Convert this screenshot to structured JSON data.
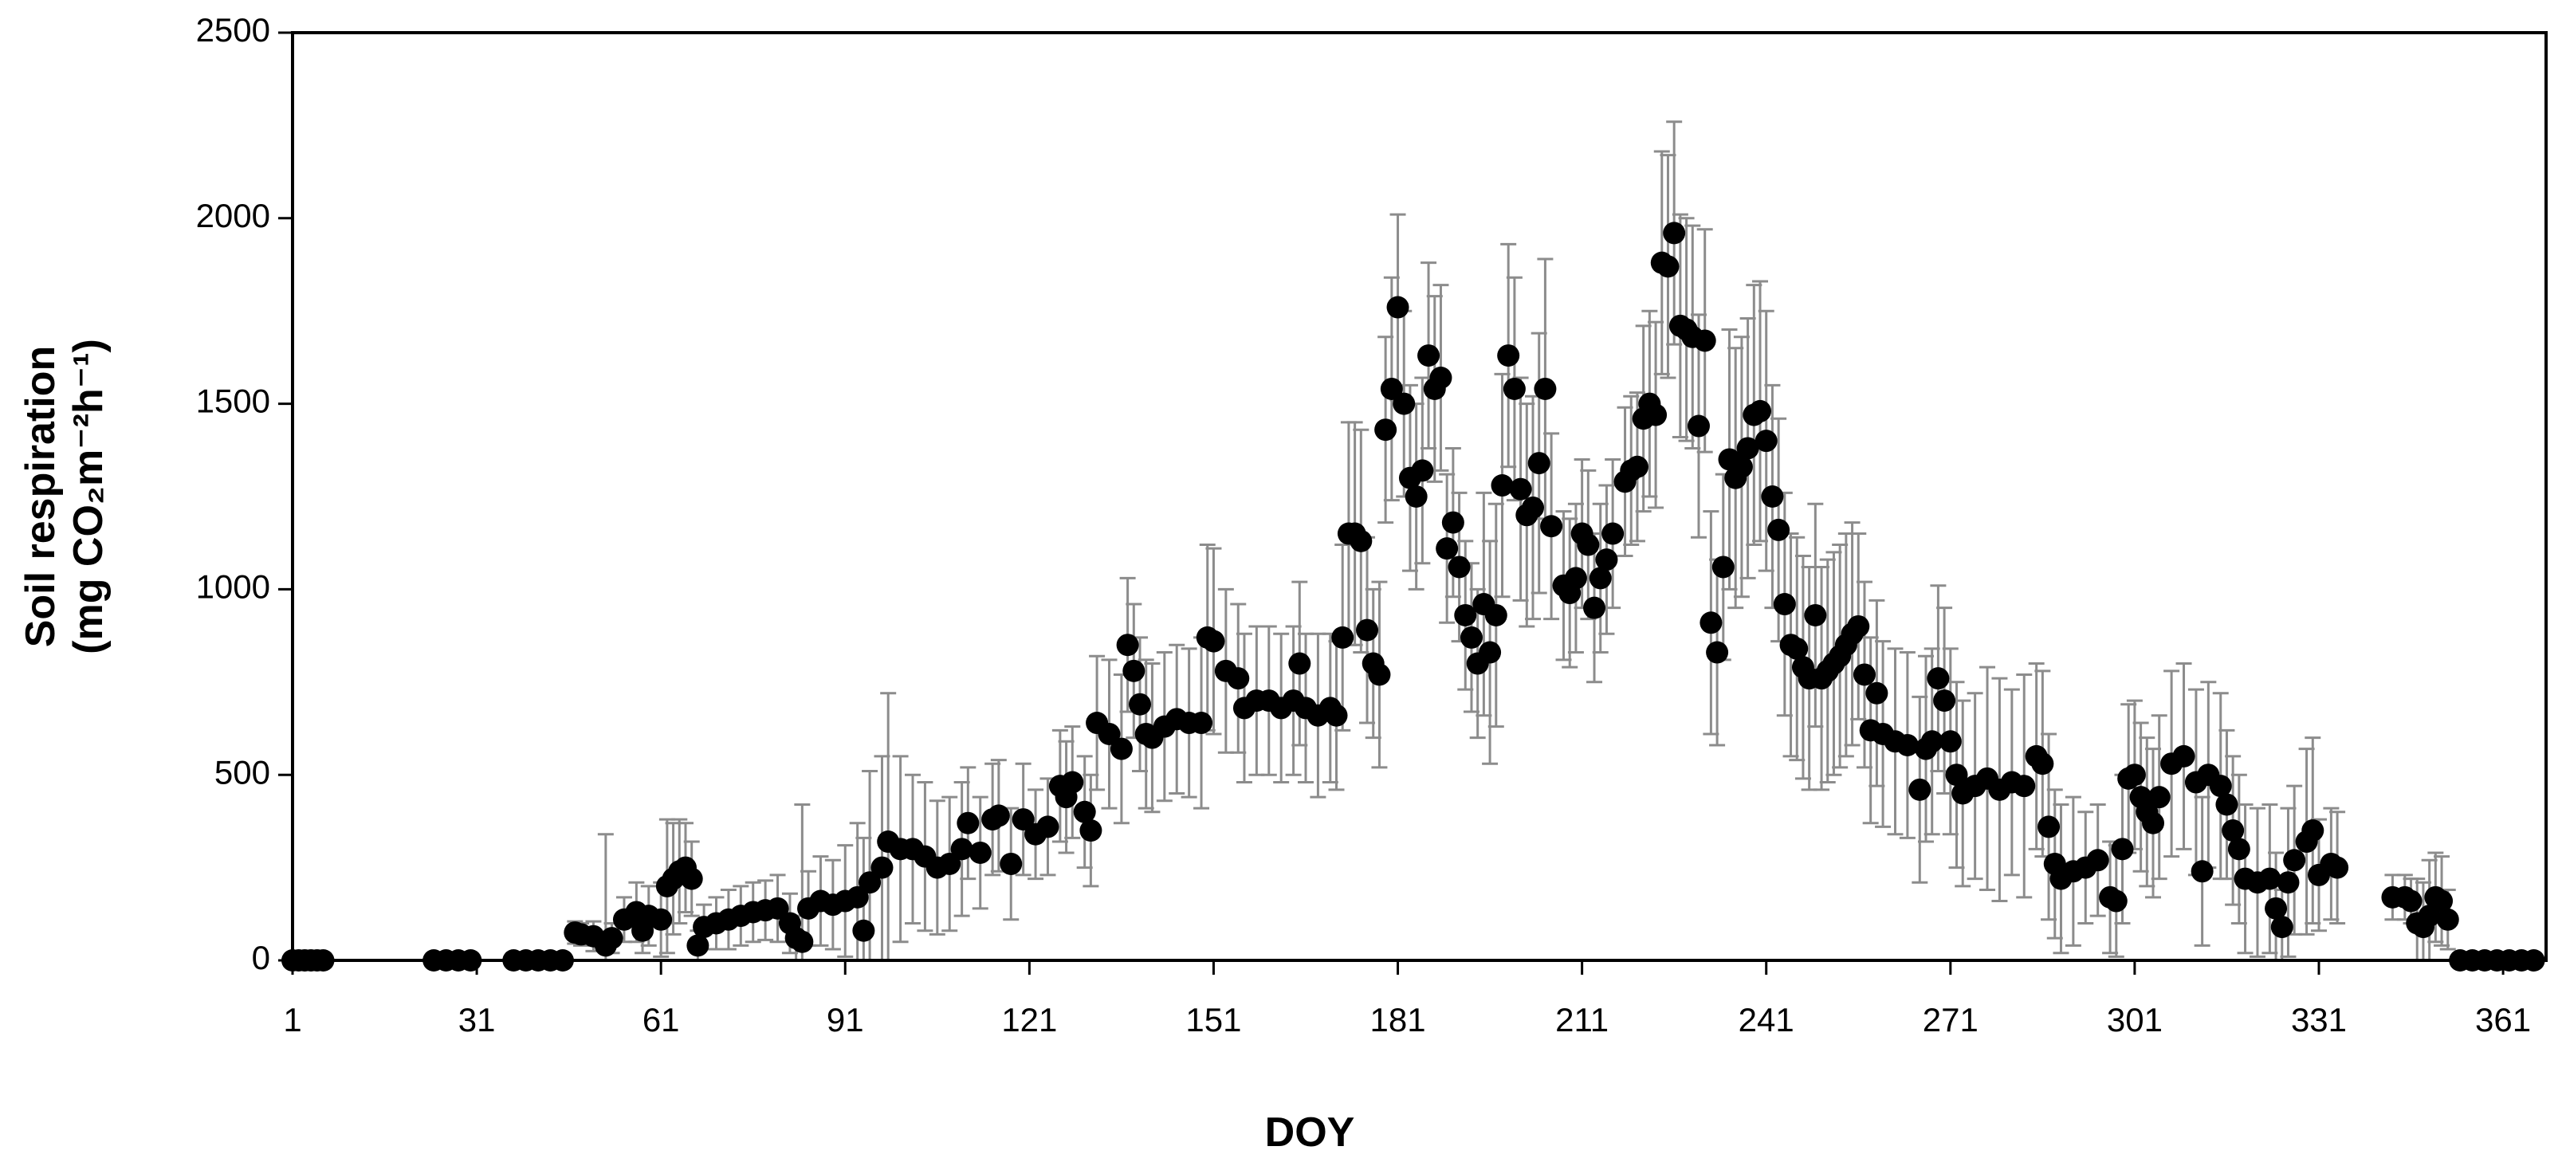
{
  "chart_data": {
    "type": "scatter",
    "x_label": "DOY",
    "y_label": [
      "Soil respiration",
      "(mg CO₂m⁻²h⁻¹)"
    ],
    "xlim": [
      1,
      368
    ],
    "ylim": [
      0,
      2500
    ],
    "xticks": [
      1,
      31,
      61,
      91,
      121,
      151,
      181,
      211,
      241,
      271,
      301,
      331,
      361
    ],
    "yticks": [
      0,
      500,
      1000,
      1500,
      2000,
      2500
    ],
    "grid": false,
    "color": "#000000",
    "error_color": "#8c8c8c",
    "x": [
      1,
      2,
      3,
      4,
      5,
      6,
      24,
      26,
      28,
      30,
      37,
      39,
      41,
      43,
      45,
      47,
      48,
      50,
      52,
      53,
      55,
      57,
      58,
      59,
      61,
      62,
      63,
      64,
      65,
      66,
      67,
      68,
      70,
      72,
      74,
      76,
      78,
      80,
      82,
      83,
      84,
      85,
      87,
      89,
      91,
      93,
      94,
      95,
      97,
      98,
      100,
      102,
      104,
      106,
      108,
      110,
      111,
      113,
      115,
      116,
      118,
      120,
      122,
      124,
      126,
      127,
      128,
      130,
      131,
      132,
      134,
      136,
      137,
      138,
      139,
      140,
      141,
      143,
      145,
      147,
      149,
      150,
      151,
      153,
      155,
      156,
      158,
      160,
      162,
      164,
      165,
      166,
      168,
      170,
      171,
      172,
      173,
      174,
      175,
      176,
      177,
      178,
      179,
      180,
      181,
      182,
      183,
      184,
      185,
      186,
      187,
      188,
      189,
      190,
      191,
      192,
      193,
      194,
      195,
      196,
      197,
      198,
      199,
      200,
      201,
      202,
      203,
      204,
      205,
      206,
      208,
      209,
      210,
      211,
      212,
      213,
      214,
      215,
      216,
      218,
      219,
      220,
      221,
      222,
      223,
      224,
      225,
      226,
      227,
      228,
      229,
      230,
      231,
      232,
      233,
      234,
      235,
      236,
      237,
      238,
      239,
      240,
      241,
      242,
      243,
      244,
      245,
      246,
      247,
      248,
      249,
      250,
      251,
      252,
      253,
      254,
      255,
      256,
      257,
      258,
      259,
      260,
      262,
      264,
      266,
      267,
      268,
      269,
      270,
      271,
      272,
      273,
      275,
      277,
      279,
      281,
      283,
      285,
      286,
      287,
      288,
      289,
      291,
      293,
      295,
      297,
      298,
      299,
      300,
      301,
      302,
      303,
      304,
      305,
      307,
      309,
      311,
      312,
      313,
      315,
      316,
      317,
      318,
      319,
      321,
      323,
      324,
      325,
      326,
      327,
      329,
      330,
      331,
      333,
      334,
      343,
      345,
      346,
      347,
      348,
      349,
      350,
      351,
      352,
      354,
      356,
      358,
      360,
      362,
      364,
      366
    ],
    "values": [
      0,
      0,
      0,
      0,
      0,
      0,
      0,
      0,
      0,
      0,
      0,
      0,
      0,
      0,
      0,
      75,
      70,
      65,
      40,
      60,
      110,
      130,
      80,
      120,
      110,
      200,
      220,
      240,
      250,
      220,
      40,
      90,
      100,
      110,
      120,
      130,
      135,
      140,
      100,
      60,
      50,
      140,
      160,
      150,
      160,
      170,
      80,
      210,
      250,
      320,
      300,
      300,
      280,
      250,
      260,
      300,
      370,
      290,
      380,
      390,
      260,
      380,
      340,
      360,
      470,
      440,
      480,
      400,
      350,
      640,
      610,
      570,
      850,
      780,
      690,
      610,
      600,
      630,
      650,
      640,
      640,
      870,
      860,
      780,
      760,
      680,
      700,
      700,
      680,
      700,
      800,
      680,
      660,
      680,
      660,
      870,
      1150,
      1150,
      1130,
      890,
      800,
      770,
      1430,
      1540,
      1760,
      1500,
      1300,
      1250,
      1320,
      1630,
      1540,
      1570,
      1110,
      1180,
      1060,
      930,
      870,
      800,
      960,
      830,
      930,
      1280,
      1630,
      1540,
      1270,
      1200,
      1220,
      1340,
      1540,
      1170,
      1010,
      990,
      1030,
      1150,
      1120,
      950,
      1030,
      1080,
      1150,
      1290,
      1320,
      1330,
      1460,
      1500,
      1470,
      1880,
      1870,
      1960,
      1710,
      1700,
      1680,
      1440,
      1670,
      910,
      830,
      1060,
      1350,
      1300,
      1330,
      1380,
      1470,
      1480,
      1400,
      1250,
      1160,
      960,
      850,
      840,
      790,
      760,
      930,
      760,
      780,
      800,
      820,
      850,
      880,
      900,
      770,
      620,
      720,
      610,
      590,
      580,
      460,
      570,
      590,
      760,
      700,
      590,
      500,
      450,
      470,
      490,
      460,
      480,
      470,
      550,
      530,
      360,
      260,
      220,
      240,
      250,
      270,
      170,
      160,
      300,
      490,
      500,
      440,
      400,
      370,
      440,
      530,
      550,
      480,
      240,
      500,
      470,
      420,
      350,
      300,
      220,
      210,
      220,
      140,
      90,
      210,
      270,
      320,
      350,
      230,
      260,
      250,
      170,
      170,
      160,
      100,
      90,
      120,
      170,
      160,
      110,
      0,
      0,
      0,
      0,
      0,
      0,
      0
    ],
    "errors": [
      0,
      0,
      0,
      0,
      0,
      0,
      0,
      0,
      0,
      0,
      0,
      0,
      0,
      0,
      0,
      30,
      30,
      40,
      300,
      40,
      60,
      80,
      60,
      80,
      100,
      180,
      150,
      140,
      120,
      100,
      40,
      60,
      70,
      80,
      80,
      80,
      80,
      90,
      80,
      60,
      370,
      100,
      120,
      120,
      150,
      200,
      250,
      300,
      300,
      400,
      250,
      200,
      200,
      180,
      180,
      180,
      150,
      150,
      150,
      150,
      150,
      150,
      120,
      130,
      150,
      150,
      150,
      150,
      150,
      180,
      200,
      200,
      180,
      180,
      180,
      200,
      200,
      200,
      200,
      200,
      230,
      250,
      250,
      220,
      200,
      200,
      200,
      200,
      200,
      200,
      220,
      200,
      220,
      200,
      200,
      250,
      300,
      300,
      300,
      250,
      200,
      250,
      250,
      300,
      250,
      250,
      250,
      250,
      250,
      250,
      250,
      250,
      200,
      200,
      200,
      200,
      200,
      200,
      300,
      300,
      300,
      300,
      300,
      300,
      300,
      300,
      300,
      350,
      350,
      250,
      200,
      200,
      200,
      200,
      200,
      200,
      200,
      200,
      200,
      200,
      200,
      200,
      250,
      250,
      250,
      300,
      300,
      300,
      300,
      300,
      300,
      300,
      300,
      300,
      250,
      250,
      350,
      350,
      350,
      350,
      350,
      350,
      350,
      300,
      300,
      300,
      300,
      300,
      300,
      300,
      300,
      300,
      300,
      300,
      300,
      300,
      300,
      250,
      250,
      250,
      250,
      250,
      250,
      250,
      250,
      250,
      250,
      250,
      250,
      250,
      250,
      250,
      250,
      300,
      300,
      250,
      300,
      250,
      250,
      250,
      200,
      200,
      200,
      150,
      150,
      150,
      150,
      200,
      200,
      200,
      200,
      200,
      200,
      220,
      250,
      250,
      250,
      200,
      250,
      250,
      200,
      200,
      200,
      200,
      200,
      200,
      150,
      100,
      200,
      200,
      250,
      250,
      150,
      150,
      150,
      60,
      60,
      60,
      120,
      120,
      150,
      120,
      120,
      80,
      0,
      0,
      0,
      0,
      0,
      0,
      0
    ]
  }
}
